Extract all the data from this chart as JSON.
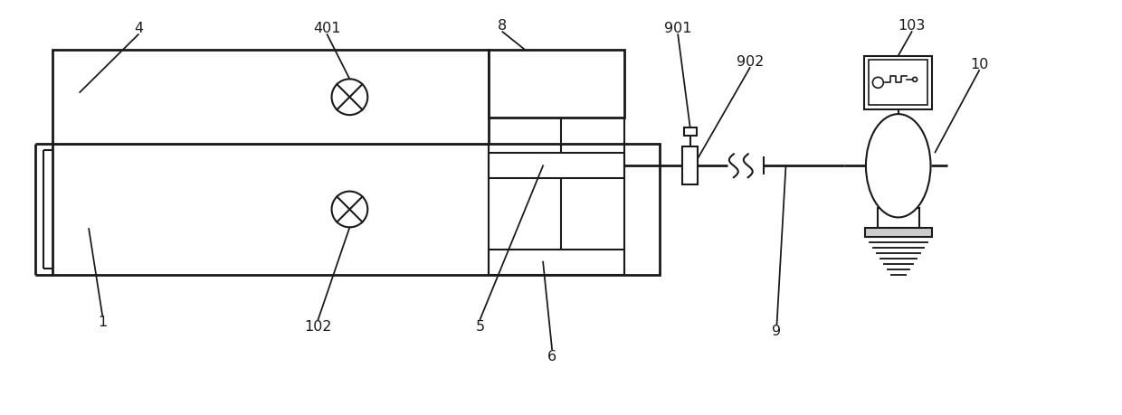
{
  "bg_color": "#ffffff",
  "line_color": "#1a1a1a",
  "lw": 1.5,
  "lw2": 2.0
}
